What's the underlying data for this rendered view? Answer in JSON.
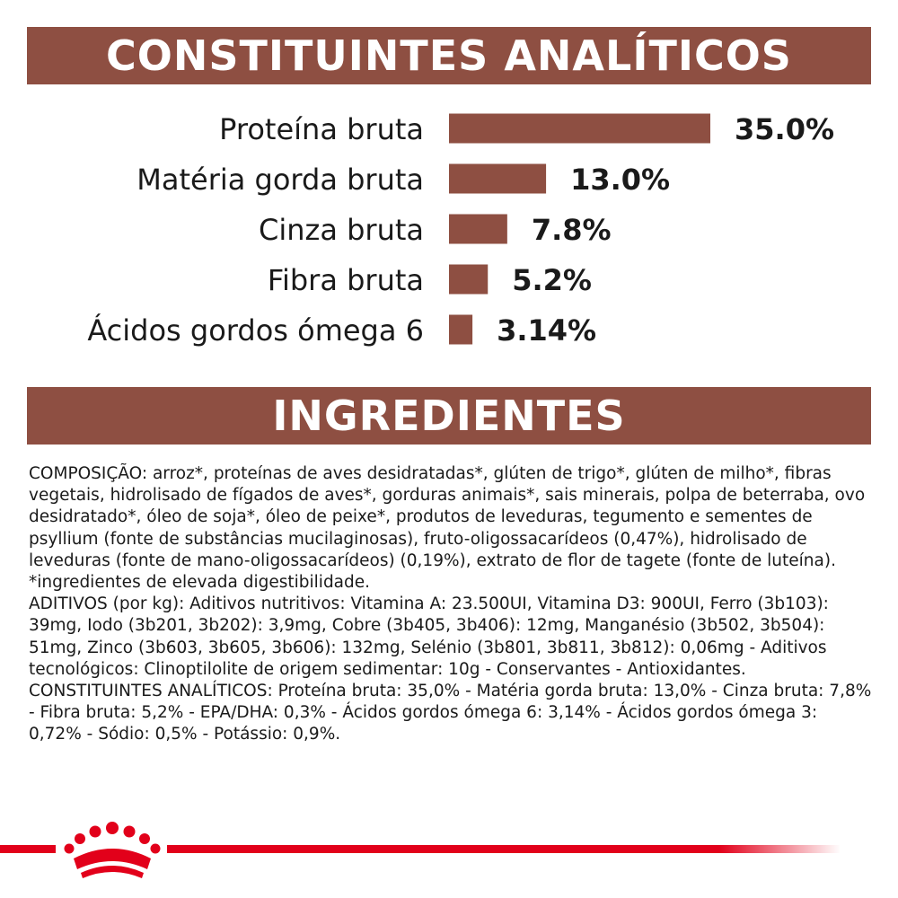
{
  "header": {
    "title": "CONSTITUINTES ANALÍTICOS"
  },
  "chart_data": {
    "type": "bar",
    "orientation": "horizontal",
    "title": "CONSTITUINTES ANALÍTICOS",
    "categories": [
      "Proteína bruta",
      "Matéria gorda bruta",
      "Cinza bruta",
      "Fibra bruta",
      "Ácidos gordos ómega 6"
    ],
    "values": [
      35.0,
      13.0,
      7.8,
      5.2,
      3.14
    ],
    "value_labels": [
      "35.0%",
      "13.0%",
      "7.8%",
      "5.2%",
      "3.14%"
    ],
    "unit": "%",
    "bar_color": "#8e4f42",
    "xlim": [
      0,
      35
    ],
    "grid": false,
    "legend": "none"
  },
  "ingredients": {
    "title": "INGREDIENTES",
    "composition": "COMPOSIÇÃO: arroz*, proteínas de aves desidratadas*, glúten de trigo*, glúten de milho*, fibras vegetais, hidrolisado de fígados de aves*, gorduras animais*, sais minerais, polpa de beterraba, ovo desidratado*, óleo de soja*, óleo de peixe*, produtos de leveduras, tegumento e sementes de psyllium (fonte de substâncias mucilaginosas), fruto-oligossacarídeos (0,47%), hidrolisado de leveduras (fonte de mano-oligossacarídeos) (0,19%), extrato de flor de tagete (fonte de luteína).",
    "note": "*ingredientes de elevada digestibilidade.",
    "additives": "ADITIVOS (por kg): Aditivos nutritivos: Vitamina A: 23.500UI, Vitamina D3: 900UI, Ferro (3b103): 39mg, Iodo (3b201, 3b202): 3,9mg, Cobre (3b405, 3b406): 12mg, Manganésio (3b502, 3b504): 51mg, Zinco (3b603, 3b605, 3b606): 132mg, Selénio (3b801, 3b811, 3b812): 0,06mg - Aditivos tecnológicos: Clinoptilolite de origem sedimentar: 10g - Conservantes - Antioxidantes.",
    "analytical": "CONSTITUINTES ANALÍTICOS: Proteína bruta: 35,0% - Matéria gorda bruta: 13,0% - Cinza bruta: 7,8% - Fibra bruta: 5,2% - EPA/DHA: 0,3% - Ácidos gordos ómega 6: 3,14% - Ácidos gordos ómega 3: 0,72% - Sódio: 0,5% - Potássio: 0,9%."
  },
  "footer": {
    "logo_icon": "crown-icon",
    "accent_color": "#e2001a"
  }
}
